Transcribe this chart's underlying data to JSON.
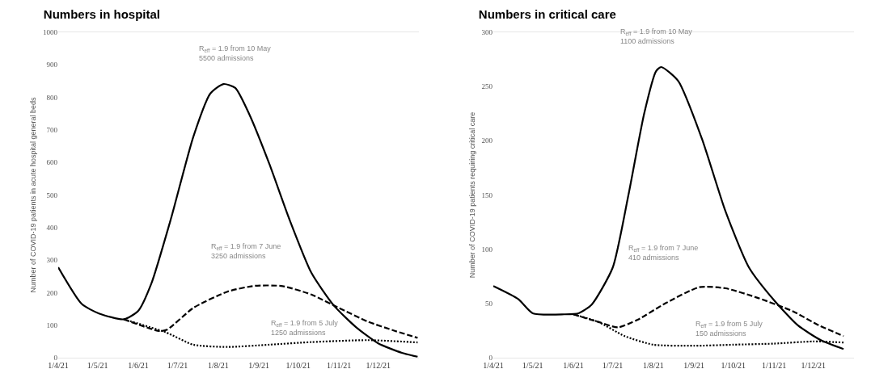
{
  "chart_data": [
    {
      "type": "line",
      "title": "Numbers in hospital",
      "ylabel": "Number of COVID-19 patients in acute hospital general beds",
      "xlim": [
        "2021-04-01",
        "2022-01-01"
      ],
      "xticks": [
        {
          "value": "2021-04-01",
          "label": "1/4/21"
        },
        {
          "value": "2021-05-01",
          "label": "1/5/21"
        },
        {
          "value": "2021-06-01",
          "label": "1/6/21"
        },
        {
          "value": "2021-07-01",
          "label": "1/7/21"
        },
        {
          "value": "2021-08-01",
          "label": "1/8/21"
        },
        {
          "value": "2021-09-01",
          "label": "1/9/21"
        },
        {
          "value": "2021-10-01",
          "label": "1/10/21"
        },
        {
          "value": "2021-11-01",
          "label": "1/11/21"
        },
        {
          "value": "2021-12-01",
          "label": "1/12/21"
        }
      ],
      "ylim": [
        0,
        1000
      ],
      "yticks": [
        0,
        100,
        200,
        300,
        400,
        500,
        600,
        700,
        800,
        900,
        1000
      ],
      "grid": false,
      "marker": "none",
      "series": [
        {
          "color": "#000000",
          "line_style": "solid",
          "x": [
            "2021-04-01",
            "2021-04-19",
            "2021-05-02",
            "2021-05-21",
            "2021-06-01",
            "2021-06-11",
            "2021-06-26",
            "2021-07-13",
            "2021-07-26",
            "2021-08-05",
            "2021-08-14",
            "2021-08-25",
            "2021-09-09",
            "2021-09-24",
            "2021-10-11",
            "2021-10-28",
            "2021-11-14",
            "2021-12-01",
            "2021-12-19",
            "2021-12-31"
          ],
          "values": [
            278,
            165,
            136,
            118,
            144,
            228,
            428,
            679,
            812,
            841,
            829,
            745,
            595,
            428,
            261,
            161,
            94,
            44,
            15,
            3
          ]
        },
        {
          "color": "#000000",
          "line_style": "dashed",
          "x": [
            "2021-05-21",
            "2021-06-17",
            "2021-06-23",
            "2021-07-13",
            "2021-08-08",
            "2021-08-29",
            "2021-09-19",
            "2021-10-11",
            "2021-11-01",
            "2021-11-23",
            "2021-12-14",
            "2021-12-31"
          ],
          "values": [
            118,
            82,
            86,
            153,
            203,
            221,
            220,
            194,
            153,
            111,
            82,
            61
          ]
        },
        {
          "color": "#000000",
          "line_style": "dotted",
          "x": [
            "2021-05-21",
            "2021-06-22",
            "2021-07-13",
            "2021-08-08",
            "2021-09-09",
            "2021-10-11",
            "2021-11-23",
            "2021-12-31"
          ],
          "values": [
            118,
            78,
            40,
            33,
            40,
            48,
            54,
            47
          ]
        }
      ],
      "annotations": [
        "R$_{eff}$ = 1.9 from 10 May\n5500 admissions",
        "R$_{eff}$ = 1.9 from 7 June\n3250 admissions",
        "R$_{eff}$ = 1.9 from 5 July\n1250 admissions"
      ]
    },
    {
      "type": "line",
      "title": "Numbers in critical care",
      "ylabel": "Number of COVID-19 patients requiring critical care",
      "xlim": [
        "2021-04-01",
        "2022-01-01"
      ],
      "xticks": [
        {
          "value": "2021-04-01",
          "label": "1/4/21"
        },
        {
          "value": "2021-05-01",
          "label": "1/5/21"
        },
        {
          "value": "2021-06-01",
          "label": "1/6/21"
        },
        {
          "value": "2021-07-01",
          "label": "1/7/21"
        },
        {
          "value": "2021-08-01",
          "label": "1/8/21"
        },
        {
          "value": "2021-09-01",
          "label": "1/9/21"
        },
        {
          "value": "2021-10-01",
          "label": "1/10/21"
        },
        {
          "value": "2021-11-01",
          "label": "1/11/21"
        },
        {
          "value": "2021-12-01",
          "label": "1/12/21"
        }
      ],
      "ylim": [
        0,
        300
      ],
      "yticks": [
        0,
        50,
        100,
        150,
        200,
        250,
        300
      ],
      "grid": false,
      "marker": "none",
      "series": [
        {
          "color": "#000000",
          "line_style": "solid",
          "x": [
            "2021-04-01",
            "2021-04-20",
            "2021-05-01",
            "2021-05-25",
            "2021-06-05",
            "2021-06-15",
            "2021-07-01",
            "2021-07-13",
            "2021-07-25",
            "2021-08-03",
            "2021-08-07",
            "2021-08-20",
            "2021-09-07",
            "2021-09-25",
            "2021-10-13",
            "2021-11-01",
            "2021-11-19",
            "2021-12-07",
            "2021-12-24"
          ],
          "values": [
            66,
            54,
            41,
            40,
            41,
            49,
            83,
            150,
            225,
            264,
            268,
            255,
            202,
            135,
            83,
            53,
            30,
            16,
            8
          ]
        },
        {
          "color": "#000000",
          "line_style": "dashed",
          "x": [
            "2021-06-01",
            "2021-06-20",
            "2021-07-05",
            "2021-07-20",
            "2021-08-10",
            "2021-09-05",
            "2021-09-25",
            "2021-10-20",
            "2021-11-15",
            "2021-12-05",
            "2021-12-24"
          ],
          "values": [
            40,
            33,
            28,
            35,
            50,
            65,
            64,
            55,
            43,
            30,
            20
          ]
        },
        {
          "color": "#000000",
          "line_style": "dotted",
          "x": [
            "2021-06-01",
            "2021-06-20",
            "2021-07-10",
            "2021-08-01",
            "2021-09-01",
            "2021-10-01",
            "2021-11-01",
            "2021-12-01",
            "2021-12-24"
          ],
          "values": [
            40,
            33,
            20,
            12,
            11,
            12,
            13,
            15,
            14
          ]
        }
      ],
      "annotations": [
        "R$_{eff}$ = 1.9 from 10 May\n1100 admissions",
        "R$_{eff}$ = 1.9 from 7 June\n410 admissions",
        "R$_{eff}$ = 1.9 from 5 July\n150 admissions"
      ]
    }
  ]
}
